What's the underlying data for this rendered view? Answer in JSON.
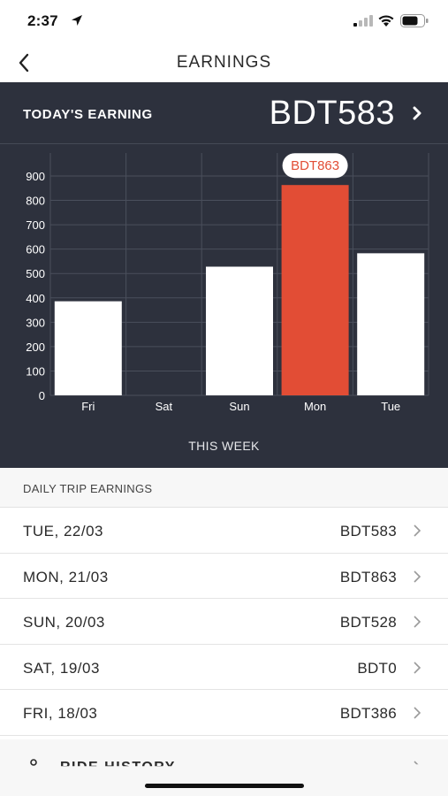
{
  "status_bar": {
    "time": "2:37",
    "icons": [
      "location-arrow-icon",
      "cellular-signal-icon",
      "wifi-icon",
      "battery-icon"
    ]
  },
  "nav": {
    "title": "EARNINGS",
    "back_icon": "chevron-left-icon"
  },
  "today": {
    "label": "TODAY'S EARNING",
    "value": "BDT583",
    "chevron_icon": "chevron-right-icon"
  },
  "chart_data": {
    "type": "bar",
    "categories": [
      "Fri",
      "Sat",
      "Sun",
      "Mon",
      "Tue"
    ],
    "values": [
      386,
      0,
      528,
      863,
      583
    ],
    "highlight_index": 3,
    "highlight_label": "BDT863",
    "yticks": [
      0,
      100,
      200,
      300,
      400,
      500,
      600,
      700,
      800,
      900
    ],
    "ylim": [
      0,
      950
    ],
    "xlabel": "THIS WEEK",
    "ylabel": "",
    "grid": true,
    "colors": {
      "bar": "#ffffff",
      "highlight": "#e24d35",
      "grid": "#4a4f5c",
      "text": "#ffffff"
    }
  },
  "list": {
    "header": "DAILY TRIP EARNINGS",
    "items": [
      {
        "date": "TUE, 22/03",
        "amount": "BDT583"
      },
      {
        "date": "MON, 21/03",
        "amount": "BDT863"
      },
      {
        "date": "SUN, 20/03",
        "amount": "BDT528"
      },
      {
        "date": "SAT, 19/03",
        "amount": "BDT0"
      },
      {
        "date": "FRI, 18/03",
        "amount": "BDT386"
      }
    ]
  },
  "history": {
    "label": "RIDE HISTORY"
  },
  "colors": {
    "panel": "#2d313d",
    "accent": "#e24d35"
  }
}
